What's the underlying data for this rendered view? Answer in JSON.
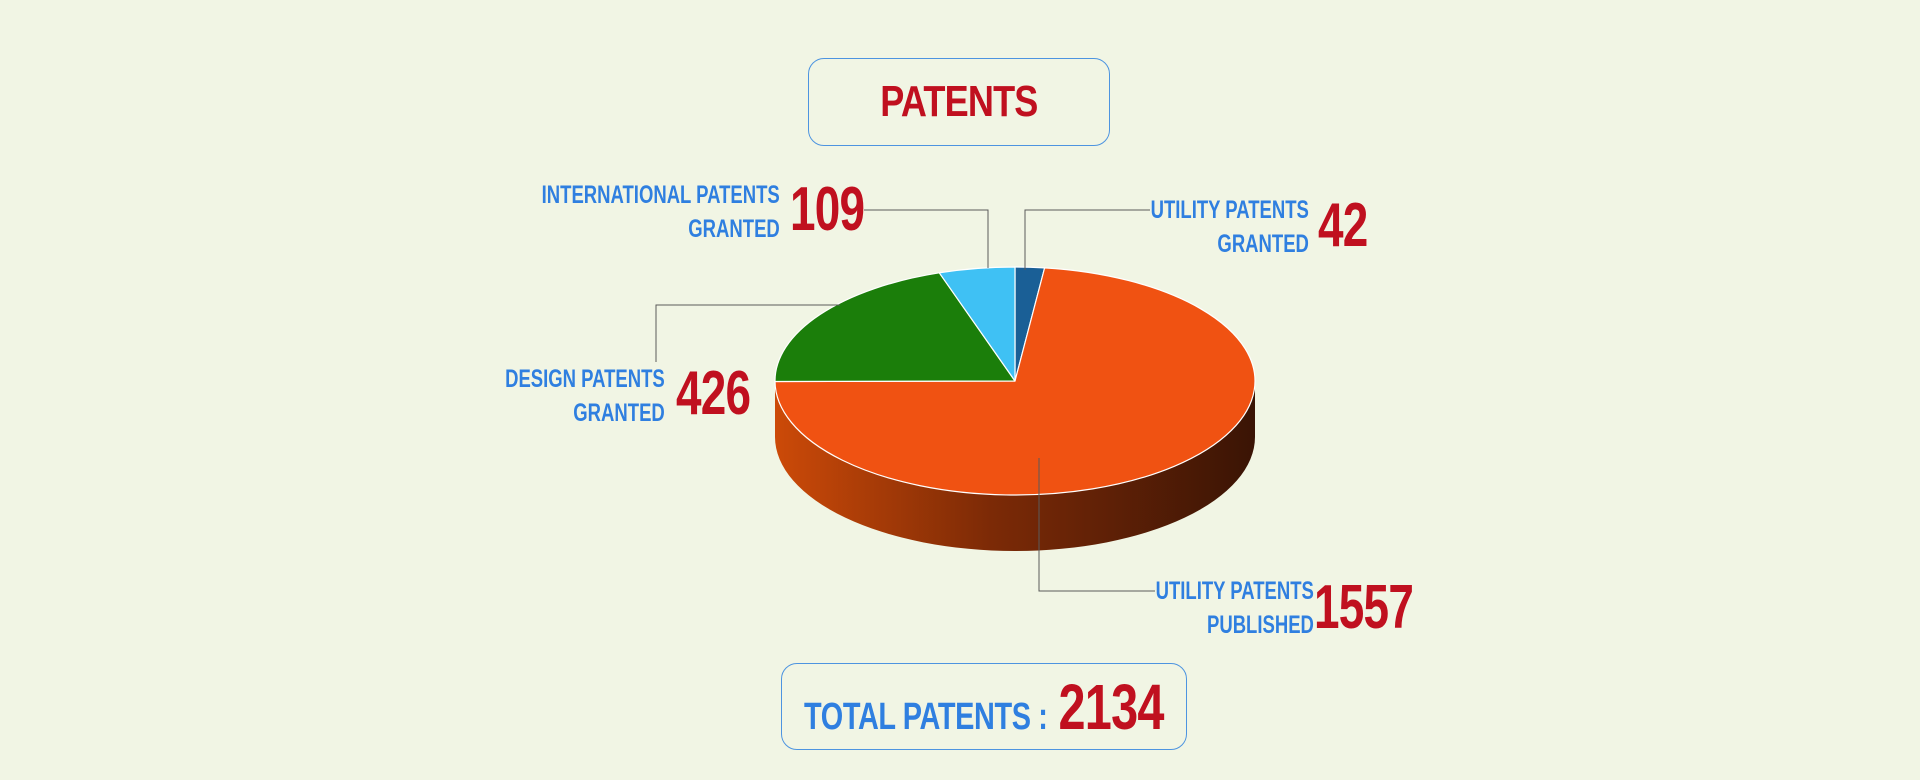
{
  "title": "PATENTS",
  "total": {
    "label": "TOTAL PATENTS :",
    "value": "2134"
  },
  "labels": {
    "utility_granted": {
      "line1": "UTILITY PATENTS",
      "line2": "GRANTED",
      "value": "42"
    },
    "international": {
      "line1": "INTERNATIONAL PATENTS",
      "line2": "GRANTED",
      "value": "109"
    },
    "design": {
      "line1": "DESIGN PATENTS",
      "line2": "GRANTED",
      "value": "426"
    },
    "utility_published": {
      "line1": "UTILITY PATENTS",
      "line2": "PUBLISHED",
      "value": "1557"
    }
  },
  "chart_data": {
    "type": "pie",
    "title": "PATENTS",
    "categories": [
      "UTILITY PATENTS GRANTED",
      "UTILITY PATENTS PUBLISHED",
      "DESIGN PATENTS GRANTED",
      "INTERNATIONAL PATENTS GRANTED"
    ],
    "values": [
      42,
      1557,
      426,
      109
    ],
    "colors": [
      "#1a5f96",
      "#f05212",
      "#1b7e0a",
      "#3fc1f4"
    ],
    "total": 2134,
    "legend": "none"
  }
}
